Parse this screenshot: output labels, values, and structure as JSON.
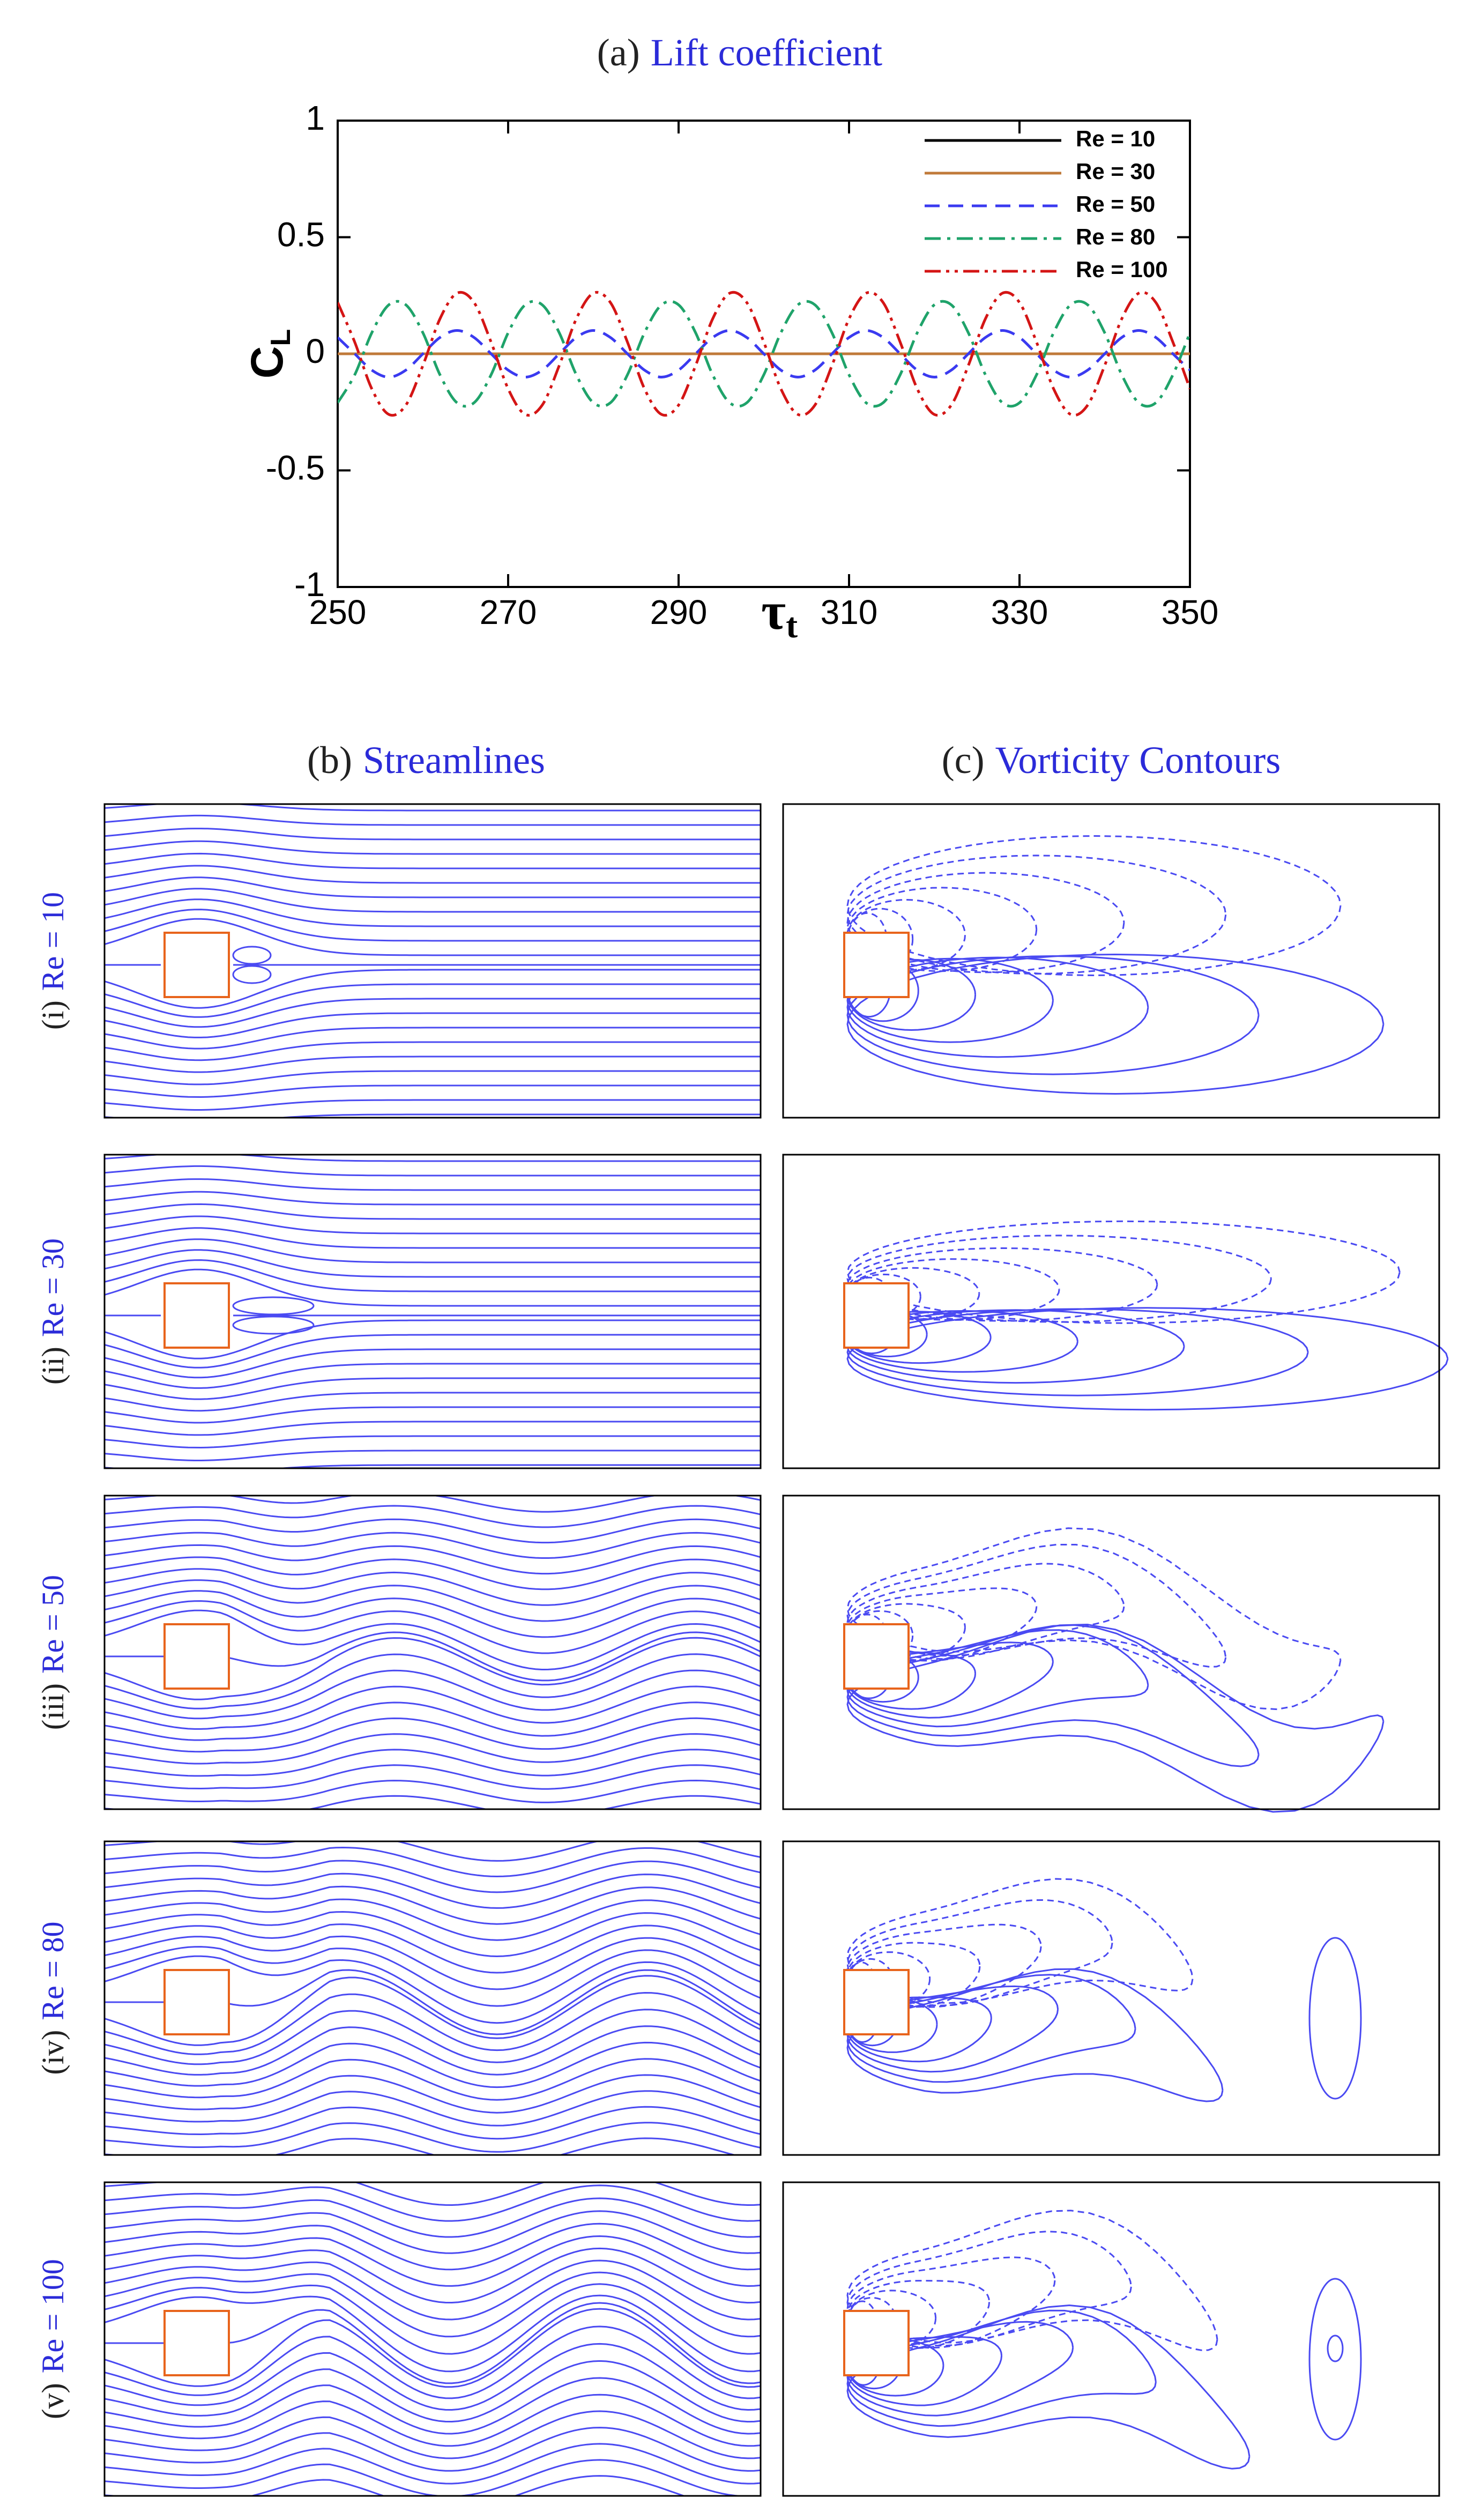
{
  "chart_data": {
    "type": "line",
    "panel_label": "(a)",
    "title": "Lift coefficient",
    "xlabel": {
      "main": "τ",
      "sub": "t"
    },
    "ylabel": {
      "main": "C",
      "sub": "L"
    },
    "xlim": [
      250,
      350
    ],
    "xticks": [
      250,
      270,
      290,
      310,
      330,
      350
    ],
    "ylim": [
      -1,
      1
    ],
    "yticks": [
      -1,
      -0.5,
      0,
      0.5,
      1
    ],
    "grid": false,
    "legend": "upper right",
    "x": [
      250,
      252,
      254,
      256,
      258,
      260,
      262,
      264,
      266,
      268,
      270,
      272,
      274,
      276,
      278,
      280,
      282,
      284,
      286,
      288,
      290,
      292,
      294,
      296,
      298,
      300,
      302,
      304,
      306,
      308,
      310,
      312,
      314,
      316,
      318,
      320,
      322,
      324,
      326,
      328,
      330,
      332,
      334,
      336,
      338,
      340,
      342,
      344,
      346,
      348,
      350
    ],
    "series": [
      {
        "name": "Re = 10",
        "color": "#000000",
        "dash": "solid",
        "values": [
          0,
          0,
          0,
          0,
          0,
          0,
          0,
          0,
          0,
          0,
          0,
          0,
          0,
          0,
          0,
          0,
          0,
          0,
          0,
          0,
          0,
          0,
          0,
          0,
          0,
          0,
          0,
          0,
          0,
          0,
          0,
          0,
          0,
          0,
          0,
          0,
          0,
          0,
          0,
          0,
          0,
          0,
          0,
          0,
          0,
          0,
          0,
          0,
          0,
          0,
          0
        ]
      },
      {
        "name": "Re = 30",
        "color": "#c07a3a",
        "dash": "solid",
        "values": [
          0,
          0,
          0,
          0,
          0,
          0,
          0,
          0,
          0,
          0,
          0,
          0,
          0,
          0,
          0,
          0,
          0,
          0,
          0,
          0,
          0,
          0,
          0,
          0,
          0,
          0,
          0,
          0,
          0,
          0,
          0,
          0,
          0,
          0,
          0,
          0,
          0,
          0,
          0,
          0,
          0,
          0,
          0,
          0,
          0,
          0,
          0,
          0,
          0,
          0,
          0
        ]
      },
      {
        "name": "Re = 50",
        "color": "#3a3af0",
        "dash": "dashed",
        "values": [
          0.07,
          0,
          -0.07,
          -0.1,
          -0.07,
          0,
          0.07,
          0.1,
          0.07,
          0,
          -0.07,
          -0.1,
          -0.07,
          0,
          0.07,
          0.1,
          0.07,
          0,
          -0.07,
          -0.1,
          -0.07,
          0,
          0.07,
          0.1,
          0.07,
          0,
          -0.07,
          -0.1,
          -0.07,
          0,
          0.07,
          0.1,
          0.07,
          0,
          -0.07,
          -0.1,
          -0.07,
          0,
          0.07,
          0.1,
          0.07,
          0,
          -0.07,
          -0.1,
          -0.07,
          0,
          0.07,
          0.1,
          0.07,
          0,
          -0.07
        ]
      },
      {
        "name": "Re = 80",
        "color": "#1fa36a",
        "dash": "dashdot",
        "values": [
          -0.21,
          -0.09,
          0.09,
          0.21,
          0.21,
          0.09,
          -0.09,
          -0.21,
          -0.21,
          -0.09,
          0.09,
          0.21,
          0.21,
          0.09,
          -0.09,
          -0.21,
          -0.21,
          -0.09,
          0.09,
          0.21,
          0.21,
          0.09,
          -0.09,
          -0.21,
          -0.21,
          -0.09,
          0.09,
          0.21,
          0.21,
          0.09,
          -0.09,
          -0.21,
          -0.21,
          -0.09,
          0.09,
          0.21,
          0.21,
          0.09,
          -0.09,
          -0.21,
          -0.21,
          -0.09,
          0.09,
          0.21,
          0.21,
          0.09,
          -0.09,
          -0.21,
          -0.21,
          -0.09,
          0.09
        ]
      },
      {
        "name": "Re = 100",
        "color": "#d41515",
        "dash": "dashdotdot",
        "values": [
          0.22,
          0.05,
          -0.15,
          -0.26,
          -0.22,
          -0.05,
          0.15,
          0.26,
          0.22,
          0.05,
          -0.15,
          -0.26,
          -0.22,
          -0.05,
          0.15,
          0.26,
          0.22,
          0.05,
          -0.15,
          -0.26,
          -0.22,
          -0.05,
          0.15,
          0.26,
          0.22,
          0.05,
          -0.15,
          -0.26,
          -0.22,
          -0.05,
          0.15,
          0.26,
          0.22,
          0.05,
          -0.15,
          -0.26,
          -0.22,
          -0.05,
          0.15,
          0.26,
          0.22,
          0.05,
          -0.15,
          -0.26,
          -0.22,
          -0.05,
          0.15,
          0.26,
          0.22,
          0.05,
          -0.15
        ]
      }
    ]
  },
  "panels": [
    {
      "label": "(b)",
      "title": "Streamlines"
    },
    {
      "label": "(c)",
      "title": "Vorticity Contours"
    }
  ],
  "rows": [
    {
      "label": "(i)",
      "title": "Re = 10"
    },
    {
      "label": "(ii)",
      "title": "Re = 30"
    },
    {
      "label": "(iii)",
      "title": "Re = 50"
    },
    {
      "label": "(iv)",
      "title": "Re = 80"
    },
    {
      "label": "(v)",
      "title": "Re = 100"
    }
  ]
}
